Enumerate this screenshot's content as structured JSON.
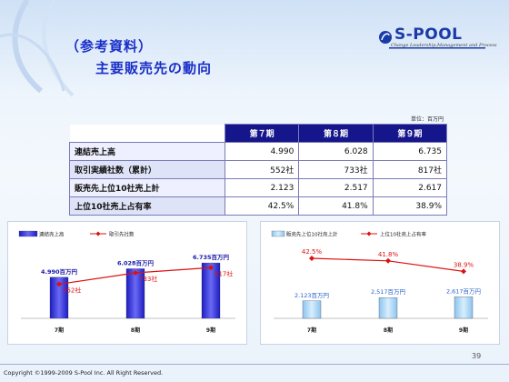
{
  "header": {
    "title_line1": "（参考資料）",
    "title_line2": "主要販売先の動向"
  },
  "logo": {
    "name": "S-POOL",
    "tagline": "Change Leadership,Management and Process"
  },
  "table": {
    "unit": "単位：百万円",
    "columns": [
      "第７期",
      "第８期",
      "第９期"
    ],
    "rows": [
      {
        "label": "連結売上高",
        "values": [
          "4.990",
          "6.028",
          "6.735"
        ]
      },
      {
        "label": "取引実績社数（累計）",
        "values": [
          "552社",
          "733社",
          "817社"
        ]
      },
      {
        "label": "販売先上位10社売上計",
        "values": [
          "2.123",
          "2.517",
          "2.617"
        ]
      },
      {
        "label": "上位10社売上占有率",
        "values": [
          "42.5%",
          "41.8%",
          "38.9%"
        ]
      }
    ]
  },
  "chart_data": [
    {
      "type": "bar",
      "categories": [
        "7期",
        "8期",
        "9期"
      ],
      "series": [
        {
          "name": "連結売上高",
          "kind": "bar",
          "values": [
            4990,
            6028,
            6735
          ],
          "labels": [
            "4.990百万円",
            "6.028百万円",
            "6.735百万円"
          ]
        },
        {
          "name": "取引先社数",
          "kind": "line",
          "values": [
            552,
            733,
            817
          ],
          "labels": [
            "552社",
            "733社",
            "817社"
          ]
        }
      ],
      "colors": {
        "bar": "#3a3adf",
        "line": "#dd1111"
      }
    },
    {
      "type": "bar",
      "categories": [
        "7期",
        "8期",
        "9期"
      ],
      "series": [
        {
          "name": "販売先上位10社売上計",
          "kind": "bar",
          "values": [
            2123,
            2517,
            2617
          ],
          "labels": [
            "2.123百万円",
            "2,517百万円",
            "2,617百万円"
          ]
        },
        {
          "name": "上位10社売上占有率",
          "kind": "line",
          "values": [
            42.5,
            41.8,
            38.9
          ],
          "labels": [
            "42.5%",
            "41.8%",
            "38.9%"
          ]
        }
      ],
      "colors": {
        "bar": "#a8d4f4",
        "line": "#dd1111"
      }
    }
  ],
  "footer": {
    "page": "39",
    "copyright": "Copyright ©1999-2009 S-Pool Inc. All Right Reserved."
  }
}
